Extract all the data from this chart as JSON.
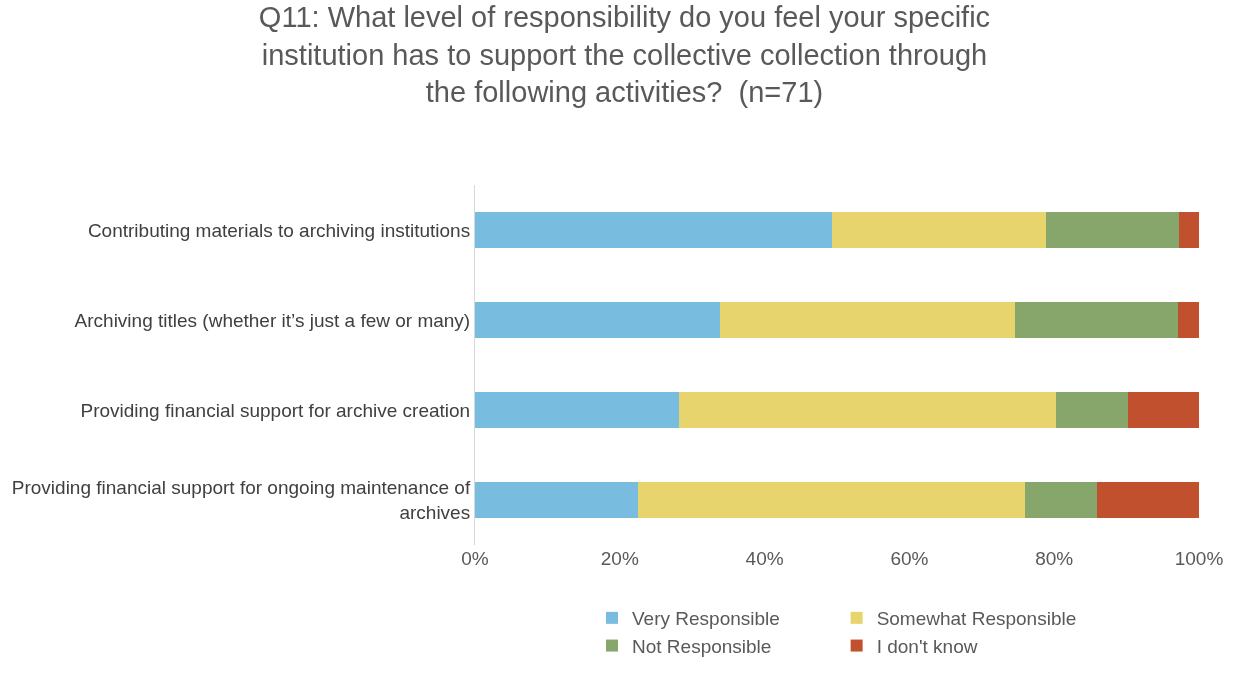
{
  "chart_data": {
    "type": "bar",
    "orientation": "horizontal",
    "stacked": true,
    "title": "Q11: What level of responsibility do you feel your specific institution has to support the collective collection through the following activities?  (n=71)",
    "categories": [
      "Contributing materials to archiving institutions",
      "Archiving titles (whether it’s just a few or many)",
      "Providing financial support for archive creation",
      "Providing financial support for ongoing maintenance of archives"
    ],
    "series": [
      {
        "name": "Very Responsible",
        "color": "#78bce0",
        "values": [
          49.3,
          33.8,
          28.2,
          22.5
        ]
      },
      {
        "name": "Somewhat Responsible",
        "color": "#e8d46c",
        "values": [
          29.6,
          40.8,
          52.1,
          53.5
        ]
      },
      {
        "name": "Not Responsible",
        "color": "#86a66c",
        "values": [
          18.3,
          22.5,
          9.9,
          9.9
        ]
      },
      {
        "name": "I don't know",
        "color": "#c0502e",
        "values": [
          2.8,
          2.9,
          9.8,
          14.1
        ]
      }
    ],
    "xlim": [
      0,
      100
    ],
    "xticks": [
      {
        "value": 0,
        "label": "0%"
      },
      {
        "value": 20,
        "label": "20%"
      },
      {
        "value": 40,
        "label": "40%"
      },
      {
        "value": 60,
        "label": "60%"
      },
      {
        "value": 80,
        "label": "80%"
      },
      {
        "value": 100,
        "label": "100%"
      }
    ],
    "grid": false,
    "legend": "bottom"
  }
}
